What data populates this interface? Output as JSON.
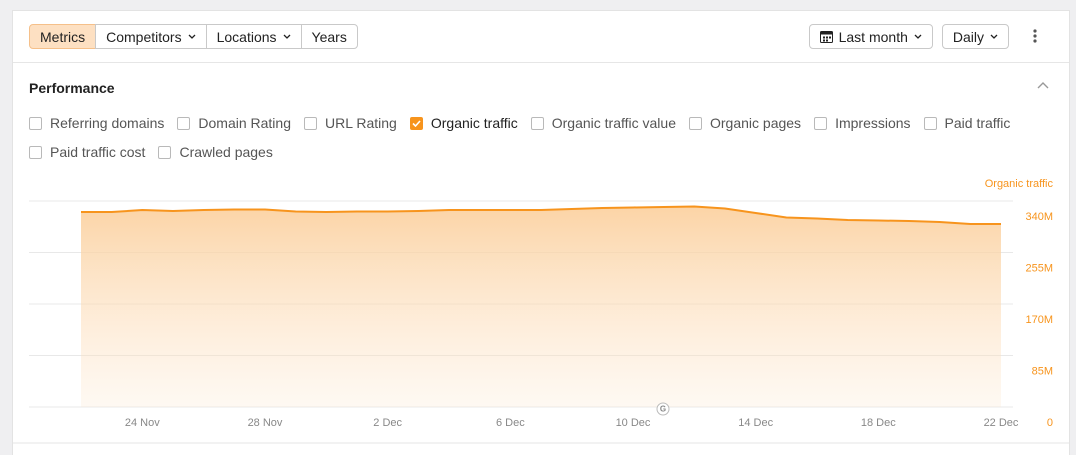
{
  "toolbar": {
    "tabs": [
      {
        "label": "Metrics",
        "active": true,
        "dropdown": false
      },
      {
        "label": "Competitors",
        "active": false,
        "dropdown": true
      },
      {
        "label": "Locations",
        "active": false,
        "dropdown": true
      },
      {
        "label": "Years",
        "active": false,
        "dropdown": false
      }
    ],
    "period": "Last month",
    "interval": "Daily"
  },
  "panel": {
    "title": "Performance",
    "metrics": [
      {
        "label": "Referring domains",
        "checked": false
      },
      {
        "label": "Domain Rating",
        "checked": false
      },
      {
        "label": "URL Rating",
        "checked": false
      },
      {
        "label": "Organic traffic",
        "checked": true
      },
      {
        "label": "Organic traffic value",
        "checked": false
      },
      {
        "label": "Organic pages",
        "checked": false
      },
      {
        "label": "Impressions",
        "checked": false
      },
      {
        "label": "Paid traffic",
        "checked": false
      },
      {
        "label": "Paid traffic cost",
        "checked": false
      },
      {
        "label": "Crawled pages",
        "checked": false
      }
    ]
  },
  "chart_data": {
    "type": "area",
    "ylabel": "Organic traffic",
    "color": "#f7941d",
    "annotation": "G",
    "categories": [
      null,
      null,
      "24 Nov",
      null,
      null,
      null,
      "28 Nov",
      null,
      null,
      null,
      "2 Dec",
      null,
      null,
      null,
      "6 Dec",
      null,
      null,
      null,
      "10 Dec",
      null,
      null,
      null,
      "14 Dec",
      null,
      null,
      null,
      "18 Dec",
      null,
      null,
      null,
      "22 Dec"
    ],
    "values": [
      321.8,
      321.8,
      325.1,
      323.5,
      325.1,
      326,
      326,
      322.7,
      321.8,
      322.7,
      322.7,
      323.5,
      325.1,
      325.1,
      325.1,
      325.1,
      326.8,
      328.4,
      329.3,
      330.1,
      330.9,
      327.6,
      320.2,
      312.8,
      311.1,
      308.7,
      307.8,
      307,
      305.3,
      302,
      302
    ],
    "ylim": [
      0,
      340
    ],
    "yticks": [
      0,
      {
        "value": 85,
        "label": "85M"
      },
      {
        "value": 170,
        "label": "170M"
      },
      {
        "value": 255,
        "label": "255M"
      },
      {
        "value": 340,
        "label": "340M"
      }
    ],
    "grid": true
  }
}
